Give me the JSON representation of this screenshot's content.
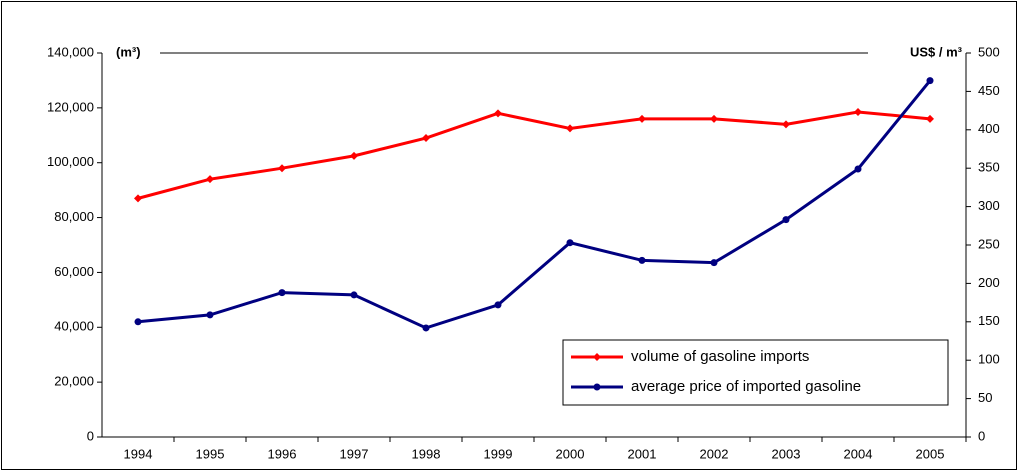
{
  "chart_data": {
    "type": "line",
    "y_label": "(m³)",
    "y2_label": "US$ / m³",
    "categories": [
      "1994",
      "1995",
      "1996",
      "1997",
      "1998",
      "1999",
      "2000",
      "2001",
      "2002",
      "2003",
      "2004",
      "2005"
    ],
    "series": [
      {
        "name": "volume of gasoline imports",
        "color": "#ff0000",
        "marker": "diamond",
        "values": [
          87000,
          94000,
          98000,
          102500,
          109000,
          118000,
          112500,
          116000,
          116000,
          114000,
          118500,
          116000
        ]
      },
      {
        "name": "average price of imported gasoline",
        "color": "#000080",
        "marker": "circle",
        "axis": "y2",
        "values": [
          150,
          159,
          188,
          185,
          142,
          172,
          253,
          230,
          227,
          283,
          349,
          464
        ]
      }
    ],
    "ylim": [
      0,
      140000
    ],
    "yticks": [
      0,
      {
        "value": 20000,
        "label": "20,000"
      },
      {
        "value": 40000,
        "label": "40,000"
      },
      {
        "value": 60000,
        "label": "60,000"
      },
      {
        "value": 80000,
        "label": "80,000"
      },
      {
        "value": 100000,
        "label": "100,000"
      },
      {
        "value": 120000,
        "label": "120,000"
      },
      {
        "value": 140000,
        "label": "140,000"
      }
    ],
    "y2lim": [
      0,
      500
    ],
    "y2ticks": [
      0,
      50,
      100,
      150,
      200,
      250,
      300,
      350,
      400,
      450,
      500
    ],
    "grid": false,
    "legend": "lower right"
  }
}
